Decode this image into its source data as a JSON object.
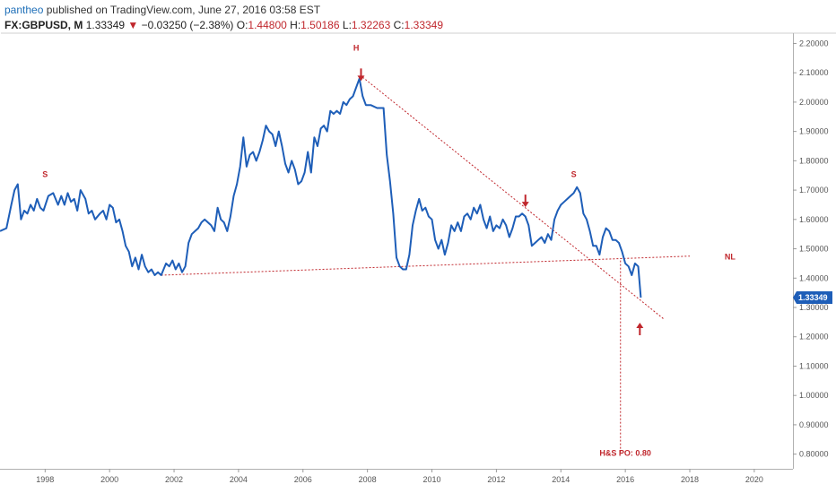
{
  "header": {
    "line1_user": "pantheo",
    "line1_text": "published on TradingView.com, June 27, 2016 03:58 EST",
    "symbol": "FX:GBPUSD, M",
    "last": "1.33349",
    "change_arrow": "▼",
    "change": "−0.03250 (−2.38%)",
    "o_label": "O:",
    "o_value": "1.44800",
    "h_label": "H:",
    "h_value": "1.50186",
    "l_label": "L:",
    "l_value": "1.32263",
    "c_label": "C:",
    "c_value": "1.33349"
  },
  "colors": {
    "line": "#1e5eb8",
    "annotation": "#c0272d",
    "axis_text": "#555555",
    "price_box": "#1e5eb8"
  },
  "chart_data": {
    "type": "line",
    "x_ticks": [
      1998,
      2000,
      2002,
      2004,
      2006,
      2008,
      2010,
      2012,
      2014,
      2016,
      2018,
      2020
    ],
    "x_tick_labels": [
      "1998",
      "2000",
      "2002",
      "2004",
      "2006",
      "2008",
      "2010",
      "2012",
      "2014",
      "2016",
      "2018",
      "2020"
    ],
    "y_ticks": [
      0.8,
      0.9,
      1.0,
      1.1,
      1.2,
      1.3,
      1.4,
      1.5,
      1.6,
      1.7,
      1.8,
      1.9,
      2.0,
      2.1,
      2.2
    ],
    "y_tick_labels": [
      "0.80000",
      "0.90000",
      "1.00000",
      "1.10000",
      "1.20000",
      "1.30000",
      "1.40000",
      "1.50000",
      "1.60000",
      "1.70000",
      "1.80000",
      "1.90000",
      "2.00000",
      "2.10000",
      "2.20000"
    ],
    "xlim": [
      1996.6,
      2021.2
    ],
    "ylim": [
      0.75,
      2.235
    ],
    "grid": false,
    "current_price_label": "1.33349",
    "current_price": 1.33349,
    "series": [
      {
        "values": [
          [
            1996.6,
            1.56
          ],
          [
            1996.8,
            1.57
          ],
          [
            1996.95,
            1.65
          ],
          [
            1997.05,
            1.7
          ],
          [
            1997.15,
            1.72
          ],
          [
            1997.25,
            1.6
          ],
          [
            1997.35,
            1.63
          ],
          [
            1997.45,
            1.62
          ],
          [
            1997.55,
            1.65
          ],
          [
            1997.65,
            1.63
          ],
          [
            1997.75,
            1.67
          ],
          [
            1997.85,
            1.64
          ],
          [
            1997.95,
            1.63
          ],
          [
            1998.1,
            1.68
          ],
          [
            1998.25,
            1.69
          ],
          [
            1998.4,
            1.65
          ],
          [
            1998.5,
            1.68
          ],
          [
            1998.6,
            1.65
          ],
          [
            1998.7,
            1.69
          ],
          [
            1998.8,
            1.66
          ],
          [
            1998.9,
            1.67
          ],
          [
            1999.0,
            1.63
          ],
          [
            1999.1,
            1.7
          ],
          [
            1999.25,
            1.67
          ],
          [
            1999.35,
            1.62
          ],
          [
            1999.45,
            1.63
          ],
          [
            1999.55,
            1.6
          ],
          [
            1999.7,
            1.62
          ],
          [
            1999.8,
            1.63
          ],
          [
            1999.9,
            1.6
          ],
          [
            2000.0,
            1.65
          ],
          [
            2000.1,
            1.64
          ],
          [
            2000.2,
            1.59
          ],
          [
            2000.3,
            1.6
          ],
          [
            2000.4,
            1.56
          ],
          [
            2000.5,
            1.51
          ],
          [
            2000.6,
            1.49
          ],
          [
            2000.7,
            1.44
          ],
          [
            2000.8,
            1.47
          ],
          [
            2000.9,
            1.43
          ],
          [
            2001.0,
            1.48
          ],
          [
            2001.1,
            1.44
          ],
          [
            2001.2,
            1.42
          ],
          [
            2001.3,
            1.43
          ],
          [
            2001.4,
            1.41
          ],
          [
            2001.5,
            1.42
          ],
          [
            2001.6,
            1.41
          ],
          [
            2001.75,
            1.45
          ],
          [
            2001.85,
            1.44
          ],
          [
            2001.95,
            1.46
          ],
          [
            2002.05,
            1.43
          ],
          [
            2002.15,
            1.45
          ],
          [
            2002.25,
            1.42
          ],
          [
            2002.35,
            1.44
          ],
          [
            2002.45,
            1.52
          ],
          [
            2002.55,
            1.55
          ],
          [
            2002.65,
            1.56
          ],
          [
            2002.75,
            1.57
          ],
          [
            2002.85,
            1.59
          ],
          [
            2002.95,
            1.6
          ],
          [
            2003.05,
            1.59
          ],
          [
            2003.15,
            1.58
          ],
          [
            2003.25,
            1.56
          ],
          [
            2003.35,
            1.64
          ],
          [
            2003.45,
            1.6
          ],
          [
            2003.55,
            1.59
          ],
          [
            2003.65,
            1.56
          ],
          [
            2003.75,
            1.61
          ],
          [
            2003.85,
            1.68
          ],
          [
            2003.95,
            1.72
          ],
          [
            2004.05,
            1.78
          ],
          [
            2004.15,
            1.88
          ],
          [
            2004.25,
            1.78
          ],
          [
            2004.35,
            1.82
          ],
          [
            2004.45,
            1.83
          ],
          [
            2004.55,
            1.8
          ],
          [
            2004.65,
            1.83
          ],
          [
            2004.75,
            1.87
          ],
          [
            2004.85,
            1.92
          ],
          [
            2004.95,
            1.9
          ],
          [
            2005.05,
            1.89
          ],
          [
            2005.15,
            1.85
          ],
          [
            2005.25,
            1.9
          ],
          [
            2005.35,
            1.85
          ],
          [
            2005.45,
            1.79
          ],
          [
            2005.55,
            1.76
          ],
          [
            2005.65,
            1.8
          ],
          [
            2005.75,
            1.77
          ],
          [
            2005.85,
            1.72
          ],
          [
            2005.95,
            1.73
          ],
          [
            2006.05,
            1.76
          ],
          [
            2006.15,
            1.83
          ],
          [
            2006.25,
            1.76
          ],
          [
            2006.35,
            1.88
          ],
          [
            2006.45,
            1.85
          ],
          [
            2006.55,
            1.91
          ],
          [
            2006.65,
            1.92
          ],
          [
            2006.75,
            1.9
          ],
          [
            2006.85,
            1.97
          ],
          [
            2006.95,
            1.96
          ],
          [
            2007.05,
            1.97
          ],
          [
            2007.15,
            1.96
          ],
          [
            2007.25,
            2.0
          ],
          [
            2007.35,
            1.99
          ],
          [
            2007.45,
            2.01
          ],
          [
            2007.55,
            2.02
          ],
          [
            2007.65,
            2.05
          ],
          [
            2007.75,
            2.08
          ],
          [
            2007.85,
            2.02
          ],
          [
            2007.95,
            1.99
          ],
          [
            2008.1,
            1.99
          ],
          [
            2008.3,
            1.98
          ],
          [
            2008.5,
            1.98
          ],
          [
            2008.6,
            1.82
          ],
          [
            2008.7,
            1.73
          ],
          [
            2008.8,
            1.62
          ],
          [
            2008.9,
            1.47
          ],
          [
            2009.0,
            1.44
          ],
          [
            2009.1,
            1.43
          ],
          [
            2009.2,
            1.43
          ],
          [
            2009.3,
            1.48
          ],
          [
            2009.4,
            1.58
          ],
          [
            2009.5,
            1.63
          ],
          [
            2009.6,
            1.67
          ],
          [
            2009.7,
            1.63
          ],
          [
            2009.8,
            1.64
          ],
          [
            2009.9,
            1.61
          ],
          [
            2010.0,
            1.6
          ],
          [
            2010.1,
            1.53
          ],
          [
            2010.2,
            1.5
          ],
          [
            2010.3,
            1.53
          ],
          [
            2010.4,
            1.48
          ],
          [
            2010.5,
            1.52
          ],
          [
            2010.6,
            1.58
          ],
          [
            2010.7,
            1.56
          ],
          [
            2010.8,
            1.59
          ],
          [
            2010.9,
            1.56
          ],
          [
            2011.0,
            1.61
          ],
          [
            2011.1,
            1.62
          ],
          [
            2011.2,
            1.6
          ],
          [
            2011.3,
            1.64
          ],
          [
            2011.4,
            1.62
          ],
          [
            2011.5,
            1.65
          ],
          [
            2011.6,
            1.6
          ],
          [
            2011.7,
            1.57
          ],
          [
            2011.8,
            1.61
          ],
          [
            2011.9,
            1.56
          ],
          [
            2012.0,
            1.58
          ],
          [
            2012.1,
            1.57
          ],
          [
            2012.2,
            1.6
          ],
          [
            2012.3,
            1.58
          ],
          [
            2012.4,
            1.54
          ],
          [
            2012.5,
            1.57
          ],
          [
            2012.6,
            1.61
          ],
          [
            2012.7,
            1.61
          ],
          [
            2012.8,
            1.62
          ],
          [
            2012.9,
            1.61
          ],
          [
            2013.0,
            1.58
          ],
          [
            2013.1,
            1.51
          ],
          [
            2013.2,
            1.52
          ],
          [
            2013.3,
            1.53
          ],
          [
            2013.4,
            1.54
          ],
          [
            2013.5,
            1.52
          ],
          [
            2013.6,
            1.55
          ],
          [
            2013.7,
            1.53
          ],
          [
            2013.8,
            1.6
          ],
          [
            2013.9,
            1.63
          ],
          [
            2014.0,
            1.65
          ],
          [
            2014.1,
            1.66
          ],
          [
            2014.2,
            1.67
          ],
          [
            2014.3,
            1.68
          ],
          [
            2014.4,
            1.69
          ],
          [
            2014.5,
            1.71
          ],
          [
            2014.6,
            1.69
          ],
          [
            2014.7,
            1.62
          ],
          [
            2014.8,
            1.6
          ],
          [
            2014.9,
            1.56
          ],
          [
            2015.0,
            1.51
          ],
          [
            2015.1,
            1.51
          ],
          [
            2015.2,
            1.48
          ],
          [
            2015.3,
            1.54
          ],
          [
            2015.4,
            1.57
          ],
          [
            2015.5,
            1.56
          ],
          [
            2015.6,
            1.53
          ],
          [
            2015.7,
            1.53
          ],
          [
            2015.8,
            1.52
          ],
          [
            2015.9,
            1.49
          ],
          [
            2016.0,
            1.45
          ],
          [
            2016.1,
            1.44
          ],
          [
            2016.2,
            1.41
          ],
          [
            2016.3,
            1.45
          ],
          [
            2016.4,
            1.44
          ],
          [
            2016.48,
            1.33349
          ]
        ]
      }
    ],
    "annotations": {
      "labels": [
        {
          "text": "S",
          "x": 1998.0,
          "y": 1.745
        },
        {
          "text": "H",
          "x": 2007.65,
          "y": 2.175
        },
        {
          "text": "S",
          "x": 2014.4,
          "y": 1.745
        },
        {
          "text": "NL",
          "x": 2019.25,
          "y": 1.463
        },
        {
          "text": "H&S PO: 0.80",
          "x": 2016.0,
          "y": 0.795
        }
      ],
      "arrows": [
        {
          "x": 2007.8,
          "y": 2.075,
          "direction": "down"
        },
        {
          "x": 2012.9,
          "y": 1.645,
          "direction": "down"
        },
        {
          "x": 2016.45,
          "y": 1.245,
          "direction": "up"
        }
      ],
      "lines": [
        {
          "name": "neckline",
          "x1": 2001.6,
          "y1": 1.41,
          "x2": 2018.0,
          "y2": 1.475
        },
        {
          "name": "trendline",
          "x1": 2007.85,
          "y1": 2.085,
          "x2": 2017.2,
          "y2": 1.26
        },
        {
          "name": "target",
          "x1": 2015.85,
          "y1": 1.46,
          "x2": 2015.85,
          "y2": 0.8
        }
      ]
    }
  }
}
